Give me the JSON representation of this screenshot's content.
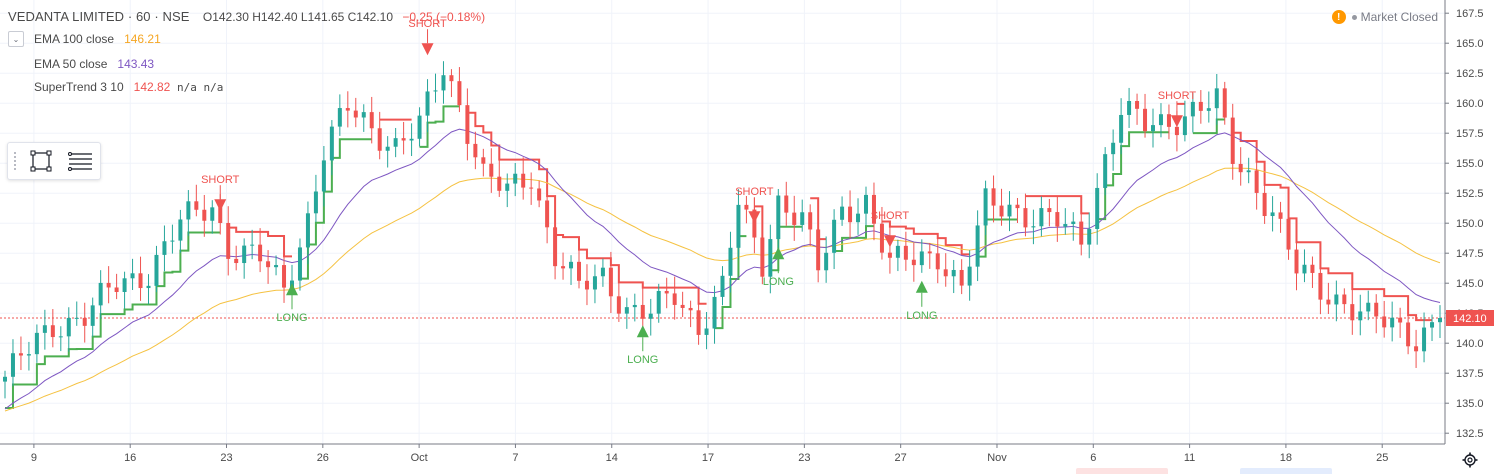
{
  "header": {
    "symbol": "VEDANTA LIMITED · 60 · NSE",
    "ohlc": "O142.30  H142.40  L141.65  C142.10",
    "change": "−0.25 (−0.18%)",
    "market_status": "Market Closed"
  },
  "indicators": [
    {
      "label": "EMA 100 close",
      "value": "146.21",
      "color": "#f5a623"
    },
    {
      "label": "EMA 50 close",
      "value": "143.43",
      "color": "#7e57c2"
    },
    {
      "label": "SuperTrend 3 10",
      "value": "142.82",
      "extra": "n/a n/a",
      "color": "#ef5350"
    }
  ],
  "colors": {
    "up": "#26a69a",
    "down": "#ef5350",
    "st_up": "#4caf50",
    "st_down": "#ef5350",
    "ema100": "#f5c242",
    "ema50": "#7e57c2"
  },
  "icons": [
    "chevron-down-icon",
    "rectangle-tool-icon",
    "menu-lines-icon",
    "warning-icon",
    "gear-icon"
  ],
  "chart_data": {
    "type": "candlestick",
    "price_axis": {
      "ticks": [
        132.5,
        135.0,
        137.5,
        140.0,
        142.5,
        145.0,
        147.5,
        150.0,
        152.5,
        155.0,
        157.5,
        160.0,
        162.5,
        165.0,
        167.5
      ],
      "last_price": "142.10",
      "range": [
        131.6,
        168.6
      ]
    },
    "time_axis": {
      "labels": [
        "9",
        "16",
        "23",
        "26",
        "Oct",
        "7",
        "14",
        "17",
        "23",
        "27",
        "Nov",
        "6",
        "11",
        "18",
        "25"
      ],
      "range": [
        0,
        180
      ]
    },
    "key_closes": [
      [
        0,
        137.2
      ],
      [
        6,
        141.5
      ],
      [
        10,
        142.3
      ],
      [
        14,
        144.8
      ],
      [
        18,
        146.0
      ],
      [
        22,
        150.0
      ],
      [
        26,
        151.5
      ],
      [
        28,
        148.0
      ],
      [
        32,
        147.0
      ],
      [
        35,
        144.5
      ],
      [
        38,
        150.5
      ],
      [
        40,
        156.0
      ],
      [
        43,
        159.5
      ],
      [
        46,
        158.0
      ],
      [
        49,
        156.5
      ],
      [
        52,
        158.0
      ],
      [
        55,
        163.0
      ],
      [
        57,
        160.0
      ],
      [
        60,
        154.0
      ],
      [
        63,
        152.5
      ],
      [
        66,
        154.0
      ],
      [
        69,
        147.5
      ],
      [
        72,
        144.5
      ],
      [
        75,
        145.5
      ],
      [
        78,
        143.0
      ],
      [
        81,
        142.5
      ],
      [
        84,
        143.8
      ],
      [
        87,
        141.5
      ],
      [
        90,
        144.8
      ],
      [
        92,
        151.5
      ],
      [
        95,
        146.5
      ],
      [
        97,
        152.0
      ],
      [
        100,
        150.5
      ],
      [
        102,
        146.0
      ],
      [
        105,
        151.0
      ],
      [
        108,
        152.0
      ],
      [
        111,
        146.5
      ],
      [
        114,
        147.0
      ],
      [
        117,
        147.5
      ],
      [
        120,
        144.5
      ],
      [
        123,
        151.5
      ],
      [
        126,
        151.5
      ],
      [
        129,
        150.5
      ],
      [
        132,
        150.0
      ],
      [
        135,
        148.5
      ],
      [
        138,
        155.5
      ],
      [
        140,
        159.5
      ],
      [
        143,
        158.0
      ],
      [
        146,
        158.5
      ],
      [
        149,
        159.5
      ],
      [
        152,
        160.0
      ],
      [
        154,
        155.5
      ],
      [
        156,
        154.0
      ],
      [
        159,
        151.0
      ],
      [
        162,
        146.0
      ],
      [
        165,
        144.5
      ],
      [
        168,
        143.5
      ],
      [
        171,
        142.0
      ],
      [
        174,
        141.5
      ],
      [
        177,
        140.5
      ],
      [
        180,
        142.1
      ]
    ],
    "signals": [
      {
        "type": "SHORT",
        "bar": 27,
        "price": 152.0
      },
      {
        "type": "LONG",
        "bar": 36,
        "price": 144.0
      },
      {
        "type": "SHORT",
        "bar": 53,
        "price": 165.0
      },
      {
        "type": "LONG",
        "bar": 80,
        "price": 140.5
      },
      {
        "type": "SHORT",
        "bar": 94,
        "price": 151.0
      },
      {
        "type": "LONG",
        "bar": 97,
        "price": 147.0
      },
      {
        "type": "SHORT",
        "bar": 111,
        "price": 149.0
      },
      {
        "type": "LONG",
        "bar": 115,
        "price": 144.2
      },
      {
        "type": "SHORT",
        "bar": 147,
        "price": 159.0
      }
    ]
  }
}
